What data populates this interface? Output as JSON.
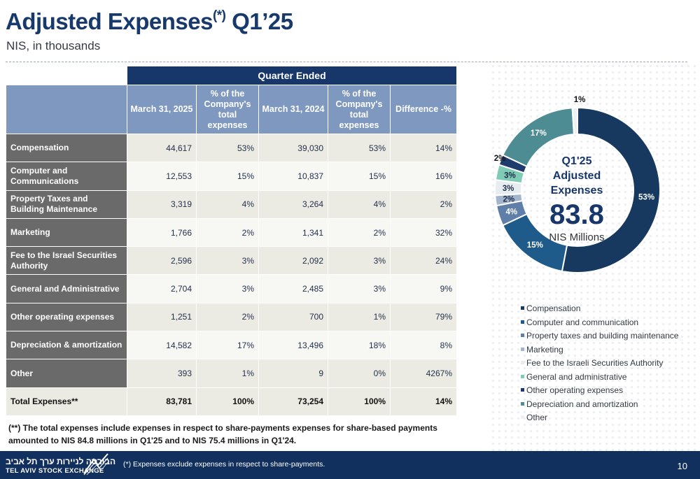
{
  "header": {
    "title_main": "Adjusted Expenses",
    "title_sup": "(*)",
    "title_tail": " Q1’25",
    "subtitle": "NIS, in thousands"
  },
  "table": {
    "group_header": "Quarter Ended",
    "columns": [
      "March 31, 2025",
      "% of the Company's total expenses",
      "March 31, 2024",
      "% of the Company's total expenses",
      "Difference -%"
    ],
    "rows": [
      {
        "label": "Compensation",
        "cells": [
          "44,617",
          "53%",
          "39,030",
          "53%",
          "14%"
        ]
      },
      {
        "label": "Computer and Communications",
        "cells": [
          "12,553",
          "15%",
          "10,837",
          "15%",
          "16%"
        ]
      },
      {
        "label": "Property Taxes and Building Maintenance",
        "cells": [
          "3,319",
          "4%",
          "3,264",
          "4%",
          "2%"
        ]
      },
      {
        "label": "Marketing",
        "cells": [
          "1,766",
          "2%",
          "1,341",
          "2%",
          "32%"
        ]
      },
      {
        "label": "Fee to the Israel Securities Authority",
        "cells": [
          "2,596",
          "3%",
          "2,092",
          "3%",
          "24%"
        ]
      },
      {
        "label": "General and Administrative",
        "cells": [
          "2,704",
          "3%",
          "2,485",
          "3%",
          "9%"
        ]
      },
      {
        "label": "Other operating expenses",
        "cells": [
          "1,251",
          "2%",
          "700",
          "1%",
          "79%"
        ]
      },
      {
        "label": "Depreciation & amortization",
        "cells": [
          "14,582",
          "17%",
          "13,496",
          "18%",
          "8%"
        ]
      },
      {
        "label": "Other",
        "cells": [
          "393",
          "1%",
          "9",
          "0%",
          "4267%"
        ]
      }
    ],
    "total": {
      "label": "Total Expenses**",
      "cells": [
        "83,781",
        "100%",
        "73,254",
        "100%",
        "14%"
      ]
    }
  },
  "footnote": "(**) The total expenses include expenses in respect to share-payments expenses for share-based payments amounted to NIS 84.8 millions in Q1'25 and to NIS 75.4 millions in Q1'24.",
  "chart_data": {
    "type": "pie",
    "center_line1": "Q1'25",
    "center_line2": "Adjusted",
    "center_line3": "Expenses",
    "center_value": "83.8",
    "center_unit": "NIS Millions",
    "slices": [
      {
        "name": "Compensation",
        "value": 53,
        "label": "53%",
        "color": "#17395f"
      },
      {
        "name": "Computer and communication",
        "value": 15,
        "label": "15%",
        "color": "#1e5b8a"
      },
      {
        "name": "Property taxes and building maintenance",
        "value": 4,
        "label": "4%",
        "color": "#5f7ea8"
      },
      {
        "name": "Marketing",
        "value": 2,
        "label": "2%",
        "color": "#a3b5cc"
      },
      {
        "name": "Fee to the Israeli Securities Authority",
        "value": 3,
        "label": "3%",
        "color": "#e7ecf1"
      },
      {
        "name": "General and administrative",
        "value": 3,
        "label": "3%",
        "color": "#7fcbb6"
      },
      {
        "name": "Other operating expenses",
        "value": 2,
        "label": "2%",
        "color": "#1f3a6d"
      },
      {
        "name": "Depreciation and amortization",
        "value": 17,
        "label": "17%",
        "color": "#4e8c93"
      },
      {
        "name": "Other",
        "value": 1,
        "label": "1%",
        "color": "#eef1f4"
      }
    ]
  },
  "footer": {
    "logo_hebrew": "הבורסה לניירות ערך תל אביב",
    "logo_english": "TEL AVIV STOCK EXCHANGE",
    "note": "(*) Expenses exclude expenses in respect to share-payments.",
    "page_number": "10"
  }
}
